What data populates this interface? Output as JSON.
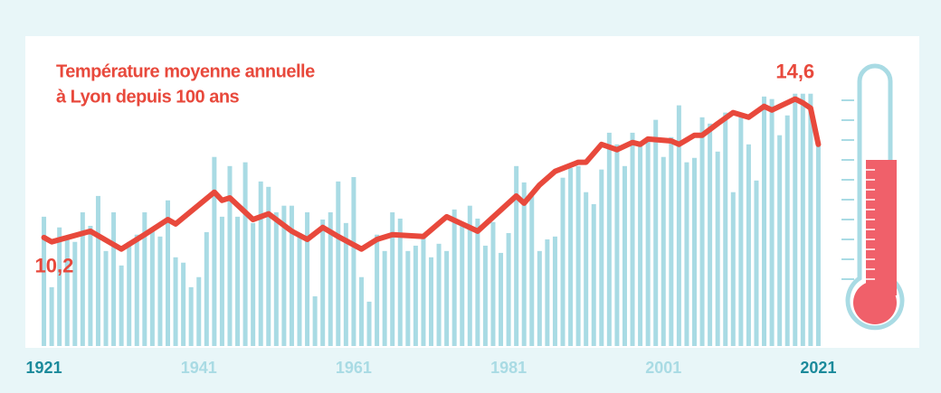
{
  "chart_data": {
    "type": "bar",
    "title": "Température moyenne annuelle",
    "subtitle": "à Lyon depuis 100 ans",
    "xlim": [
      1920,
      2022
    ],
    "ylim": [
      6.75,
      16.6
    ],
    "xticks": [
      1921,
      1941,
      1961,
      1981,
      2001,
      2021
    ],
    "series": [
      {
        "type": "bar",
        "color": "#a9dbe4",
        "x": [
          1921,
          1922,
          1923,
          1924,
          1925,
          1926,
          1927,
          1928,
          1929,
          1930,
          1931,
          1932,
          1933,
          1934,
          1935,
          1936,
          1937,
          1938,
          1939,
          1940,
          1941,
          1942,
          1943,
          1944,
          1945,
          1946,
          1947,
          1948,
          1949,
          1950,
          1951,
          1952,
          1953,
          1954,
          1955,
          1956,
          1957,
          1958,
          1959,
          1960,
          1961,
          1962,
          1963,
          1964,
          1965,
          1966,
          1967,
          1968,
          1969,
          1970,
          1971,
          1972,
          1973,
          1974,
          1975,
          1976,
          1977,
          1978,
          1979,
          1980,
          1981,
          1982,
          1983,
          1984,
          1985,
          1986,
          1987,
          1988,
          1989,
          1990,
          1991,
          1992,
          1993,
          1994,
          1995,
          1996,
          1997,
          1998,
          1999,
          2000,
          2001,
          2002,
          2003,
          2004,
          2005,
          2006,
          2007,
          2008,
          2009,
          2010,
          2011,
          2012,
          2013,
          2014,
          2015,
          2016,
          2017,
          2018,
          2019,
          2020,
          2021
        ],
        "values": [
          10.86,
          8.62,
          10.52,
          10.23,
          10.06,
          11.0,
          10.57,
          11.52,
          9.77,
          11.0,
          9.31,
          10.06,
          10.29,
          11.0,
          10.43,
          10.23,
          11.38,
          9.57,
          9.4,
          8.62,
          8.94,
          10.37,
          12.76,
          10.86,
          12.47,
          10.86,
          12.59,
          10.66,
          11.98,
          11.81,
          11.0,
          11.21,
          11.21,
          10.34,
          11.0,
          8.33,
          10.77,
          11.0,
          11.98,
          10.66,
          12.12,
          8.94,
          8.16,
          10.29,
          9.77,
          11.0,
          10.8,
          9.77,
          9.94,
          10.23,
          9.57,
          10.0,
          9.77,
          11.09,
          10.57,
          11.21,
          10.8,
          9.94,
          10.69,
          9.71,
          10.34,
          12.47,
          11.95,
          11.52,
          9.77,
          10.14,
          10.23,
          12.1,
          12.41,
          12.47,
          11.64,
          11.26,
          12.36,
          13.53,
          13.16,
          12.47,
          13.53,
          13.16,
          13.39,
          13.94,
          12.76,
          13.39,
          14.4,
          12.59,
          12.73,
          14.02,
          13.82,
          12.93,
          14.17,
          11.64,
          14.08,
          13.16,
          12.01,
          14.68,
          14.6,
          13.45,
          14.08,
          14.77,
          14.77,
          14.77,
          13.16
        ]
      },
      {
        "type": "line",
        "color": "#e8493c",
        "x": [
          1921,
          1922,
          1927,
          1931,
          1934,
          1937,
          1938,
          1943,
          1944,
          1945,
          1948,
          1950,
          1951,
          1953,
          1955,
          1957,
          1959,
          1962,
          1964,
          1966,
          1970,
          1973,
          1977,
          1982,
          1983,
          1985,
          1987,
          1990,
          1991,
          1993,
          1995,
          1997,
          1998,
          1999,
          2002,
          2003,
          2005,
          2006,
          2008,
          2010,
          2012,
          2014,
          2015,
          2018,
          2019,
          2020,
          2021
        ],
        "values": [
          10.2,
          10.06,
          10.4,
          9.83,
          10.29,
          10.77,
          10.63,
          11.64,
          11.38,
          11.46,
          10.77,
          10.95,
          10.77,
          10.4,
          10.14,
          10.52,
          10.23,
          9.83,
          10.14,
          10.29,
          10.23,
          10.86,
          10.4,
          11.52,
          11.29,
          11.87,
          12.3,
          12.59,
          12.59,
          13.16,
          12.99,
          13.22,
          13.16,
          13.33,
          13.27,
          13.16,
          13.45,
          13.45,
          13.82,
          14.17,
          14.02,
          14.37,
          14.25,
          14.6,
          14.48,
          14.31,
          13.16
        ],
        "value_labels": [
          "10,2",
          null,
          null,
          null,
          null,
          null,
          null,
          null,
          null,
          null,
          null,
          null,
          null,
          null,
          null,
          null,
          null,
          null,
          null,
          null,
          null,
          null,
          null,
          null,
          null,
          null,
          null,
          null,
          null,
          null,
          null,
          null,
          null,
          null,
          null,
          null,
          null,
          null,
          null,
          null,
          null,
          null,
          null,
          "14,6",
          null,
          null,
          null
        ]
      }
    ]
  }
}
